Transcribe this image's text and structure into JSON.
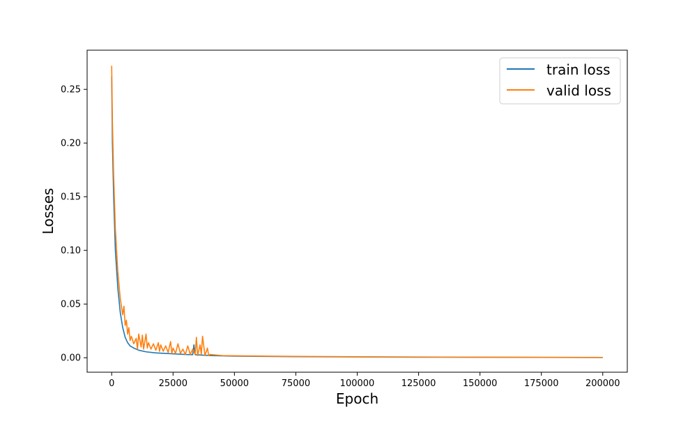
{
  "chart_data": {
    "type": "line",
    "title": "",
    "xlabel": "Epoch",
    "ylabel": "Losses",
    "xlim": [
      -10000,
      210000
    ],
    "ylim": [
      -0.0135,
      0.2865
    ],
    "x_ticks": [
      0,
      25000,
      50000,
      75000,
      100000,
      125000,
      150000,
      175000,
      200000
    ],
    "x_tick_labels": [
      "0",
      "25000",
      "50000",
      "75000",
      "100000",
      "125000",
      "150000",
      "175000",
      "200000"
    ],
    "y_ticks": [
      0.0,
      0.05,
      0.1,
      0.15,
      0.2,
      0.25
    ],
    "y_tick_labels": [
      "0.00",
      "0.05",
      "0.10",
      "0.15",
      "0.20",
      "0.25"
    ],
    "grid": false,
    "legend_position": "top-right",
    "series": [
      {
        "name": "train loss",
        "color": "#1f77b4",
        "x": [
          0,
          300,
          800,
          1500,
          2500,
          3500,
          4500,
          5500,
          6500,
          7500,
          9000,
          11000,
          14000,
          18000,
          22000,
          26000,
          30000,
          33000,
          33500,
          34000,
          36000,
          40000,
          50000,
          75000,
          100000,
          125000,
          150000,
          175000,
          200000
        ],
        "y": [
          0.262,
          0.2,
          0.15,
          0.1,
          0.065,
          0.042,
          0.028,
          0.019,
          0.014,
          0.011,
          0.009,
          0.007,
          0.0055,
          0.0045,
          0.004,
          0.0035,
          0.003,
          0.0028,
          0.012,
          0.0028,
          0.0025,
          0.002,
          0.0015,
          0.001,
          0.0007,
          0.0005,
          0.0004,
          0.0003,
          0.0002
        ]
      },
      {
        "name": "valid loss",
        "color": "#ff7f0e",
        "x": [
          0,
          300,
          800,
          1500,
          2500,
          3500,
          4500,
          5000,
          5500,
          6000,
          6500,
          7000,
          7500,
          8000,
          9000,
          10000,
          10500,
          11000,
          12000,
          12500,
          13000,
          14000,
          14500,
          15000,
          16000,
          17000,
          18000,
          19000,
          19500,
          20000,
          21000,
          22000,
          23000,
          24000,
          24500,
          25000,
          26000,
          27000,
          28000,
          29000,
          30000,
          31000,
          32000,
          33000,
          34000,
          34500,
          35000,
          36000,
          36500,
          37000,
          38000,
          39000,
          39500,
          40000,
          45000,
          50000,
          75000,
          100000,
          125000,
          150000,
          175000,
          200000
        ],
        "y": [
          0.272,
          0.22,
          0.17,
          0.12,
          0.08,
          0.055,
          0.04,
          0.048,
          0.03,
          0.035,
          0.022,
          0.028,
          0.016,
          0.02,
          0.013,
          0.018,
          0.008,
          0.022,
          0.01,
          0.021,
          0.008,
          0.022,
          0.009,
          0.014,
          0.008,
          0.013,
          0.007,
          0.014,
          0.006,
          0.012,
          0.006,
          0.011,
          0.005,
          0.015,
          0.004,
          0.009,
          0.004,
          0.013,
          0.004,
          0.008,
          0.003,
          0.011,
          0.003,
          0.008,
          0.003,
          0.019,
          0.002,
          0.012,
          0.003,
          0.02,
          0.002,
          0.009,
          0.002,
          0.003,
          0.002,
          0.0018,
          0.0012,
          0.0009,
          0.0007,
          0.0005,
          0.0004,
          0.0003
        ]
      }
    ]
  }
}
